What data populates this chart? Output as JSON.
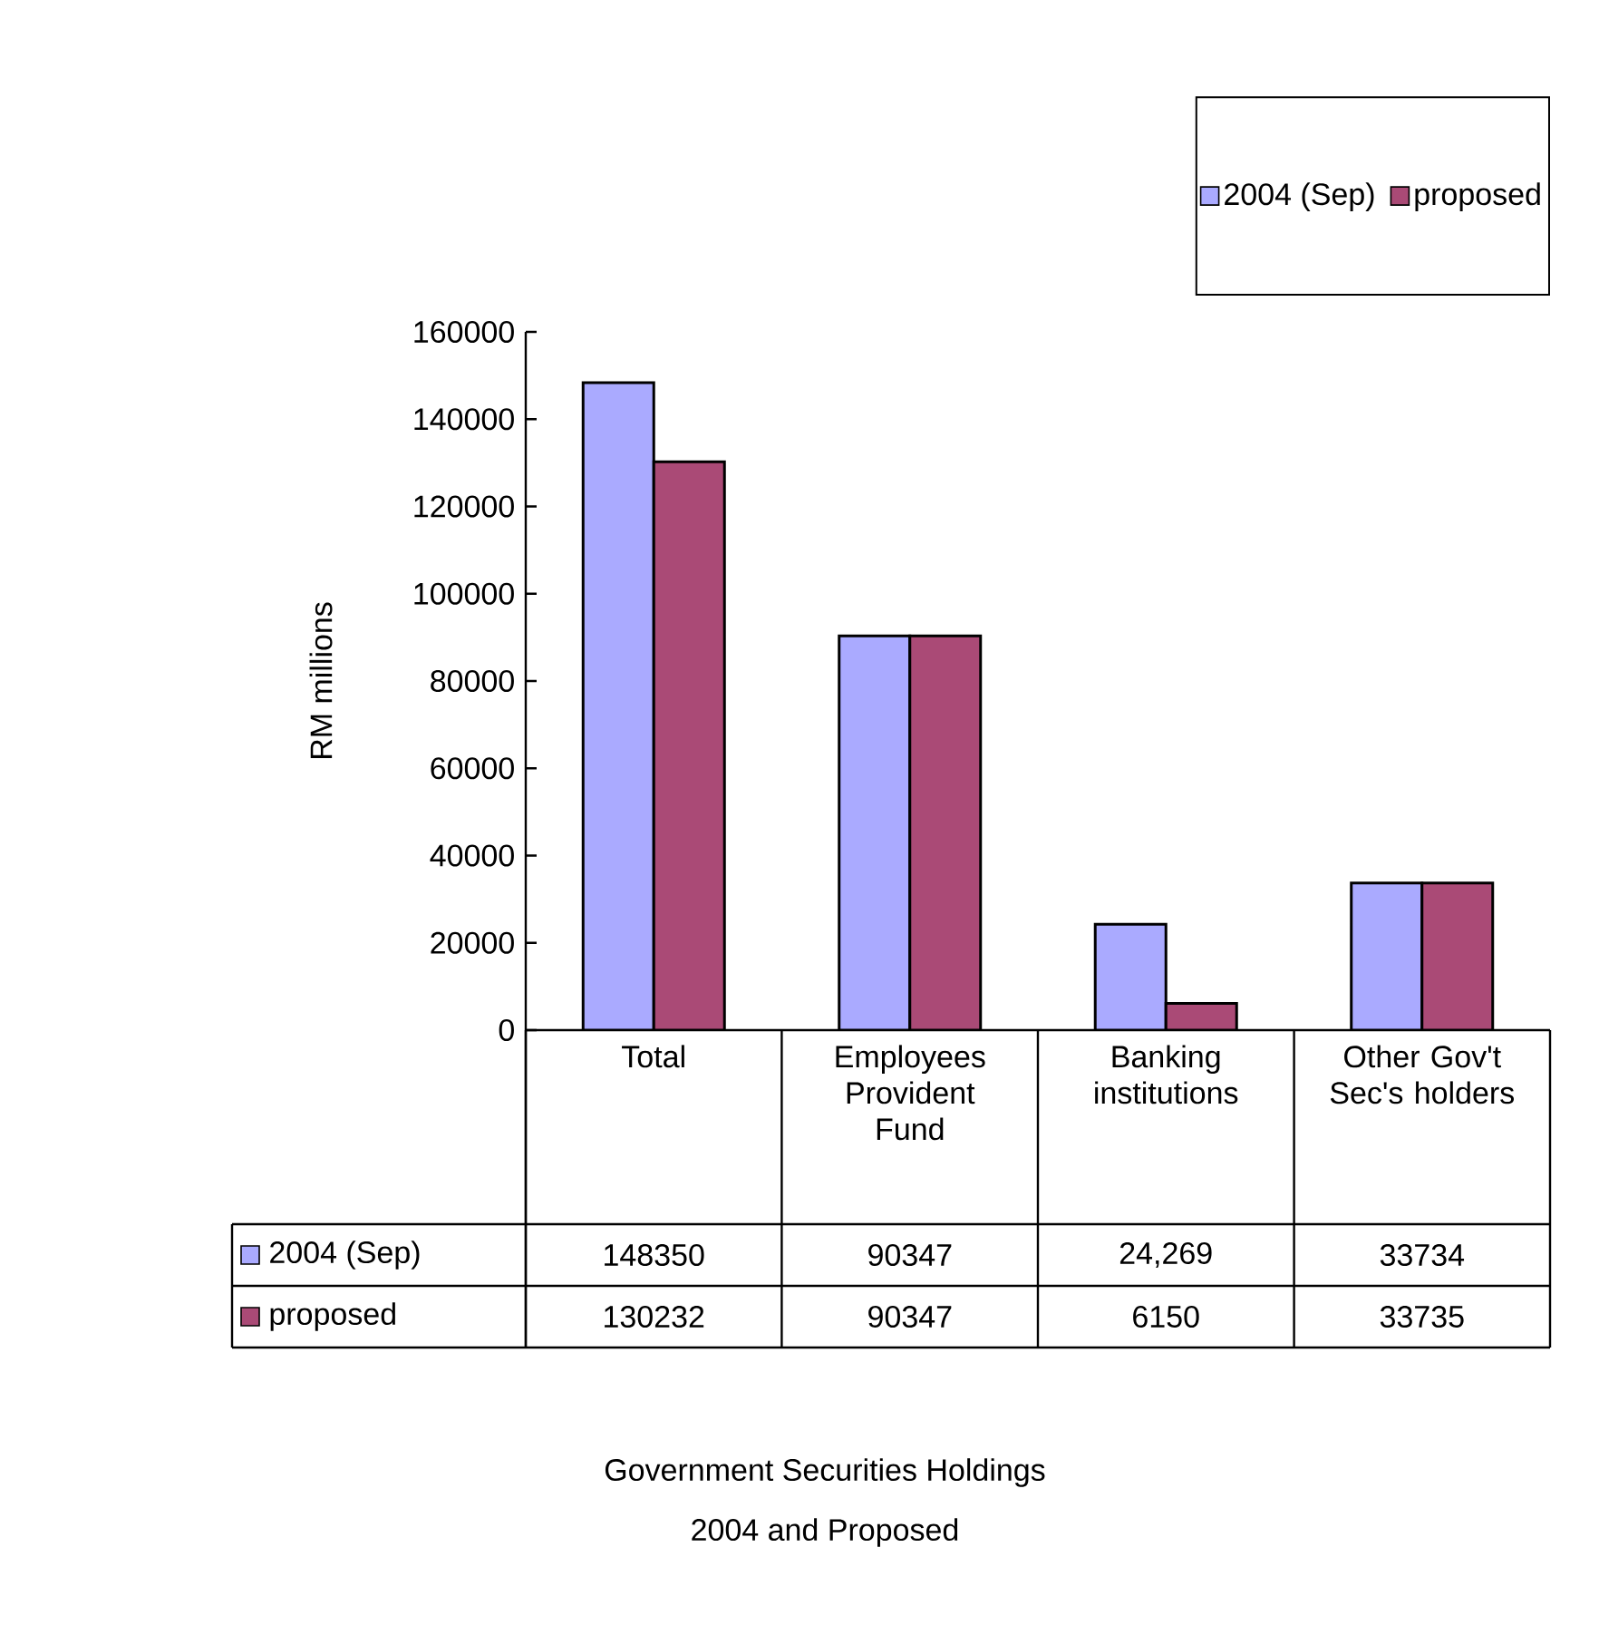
{
  "chart_data": {
    "type": "bar",
    "title": "Government Securities Holdings",
    "subtitle": "2004 and Proposed",
    "ylabel": "RM millions",
    "categories": [
      "Total",
      "Employees Provident Fund",
      "Banking institutions",
      "Other Gov't Sec's holders"
    ],
    "series": [
      {
        "name": "2004 (Sep)",
        "color": "#aaaaff",
        "values": [
          148350,
          90347,
          24269,
          33734
        ],
        "value_labels": [
          "148350",
          "90347",
          "24,269",
          "33734"
        ]
      },
      {
        "name": "proposed",
        "color": "#aa4a76",
        "values": [
          130232,
          90347,
          6150,
          33735
        ],
        "value_labels": [
          "130232",
          "90347",
          "6150",
          "33735"
        ]
      }
    ],
    "ylim": [
      0,
      160000
    ],
    "yticks": [
      0,
      20000,
      40000,
      60000,
      80000,
      100000,
      120000,
      140000,
      160000
    ],
    "grid": false,
    "legend": "top right"
  }
}
